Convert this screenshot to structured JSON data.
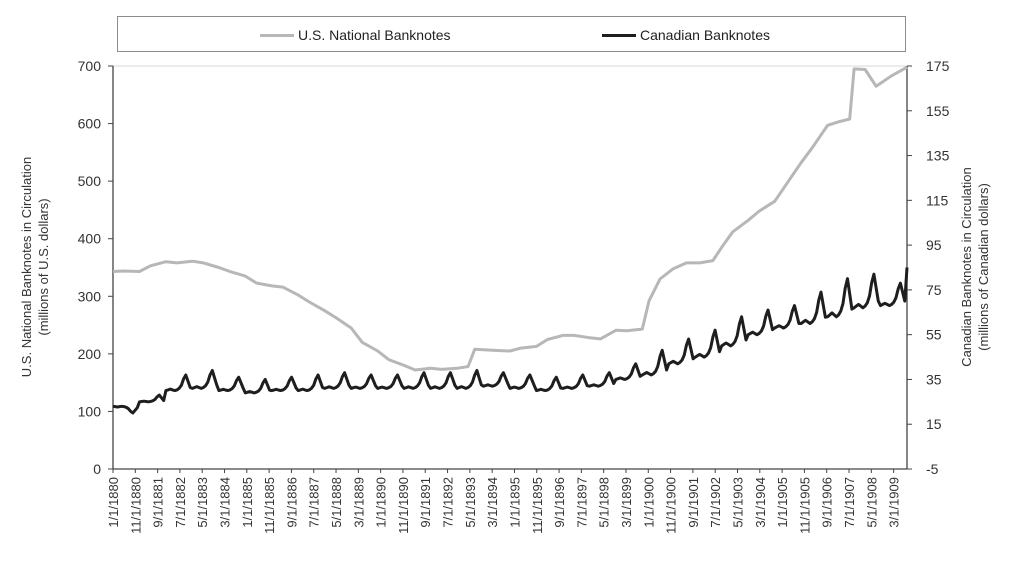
{
  "legend": {
    "items": [
      {
        "label": "U.S. National Banknotes",
        "color": "#b7b7b7"
      },
      {
        "label": "Canadian Banknotes",
        "color": "#1e1e1e"
      }
    ]
  },
  "chart_data": {
    "type": "line",
    "left_axis": {
      "label_line1": "U.S. National Banknotes in Circulation",
      "label_line2": "(millions of U.S. dollars)",
      "ylim": [
        0,
        700
      ],
      "ticks": [
        "0",
        "100",
        "200",
        "300",
        "400",
        "500",
        "600",
        "700"
      ]
    },
    "right_axis": {
      "label_line1": "Canadian Banknotes in Circulation",
      "label_line2": "(millions of Canadian dollars)",
      "ylim": [
        -5,
        175
      ],
      "ticks": [
        "-5",
        "15",
        "35",
        "55",
        "75",
        "95",
        "115",
        "135",
        "155",
        "175"
      ]
    },
    "x_range": [
      "1880-01",
      "1910-01"
    ],
    "x_ticks": [
      "1/1/1880",
      "11/1/1880",
      "9/1/1881",
      "7/1/1882",
      "5/1/1883",
      "3/1/1884",
      "1/1/1885",
      "11/1/1885",
      "9/1/1886",
      "7/1/1887",
      "5/1/1888",
      "3/1/1889",
      "1/1/1890",
      "11/1/1890",
      "9/1/1891",
      "7/1/1892",
      "5/1/1893",
      "3/1/1894",
      "1/1/1895",
      "11/1/1895",
      "9/1/1896",
      "7/1/1897",
      "5/1/1898",
      "3/1/1899",
      "1/1/1900",
      "11/1/1900",
      "9/1/1901",
      "7/1/1902",
      "5/1/1903",
      "3/1/1904",
      "1/1/1905",
      "11/1/1905",
      "9/1/1906",
      "7/1/1907",
      "5/1/1908",
      "3/1/1909"
    ],
    "series": [
      {
        "name": "U.S. National Banknotes",
        "axis": "left",
        "color": "#b7b7b7",
        "points": [
          [
            "1880-01",
            343
          ],
          [
            "1880-06",
            344
          ],
          [
            "1881-01",
            343
          ],
          [
            "1881-06",
            353
          ],
          [
            "1882-01",
            360
          ],
          [
            "1882-06",
            358
          ],
          [
            "1883-01",
            361
          ],
          [
            "1883-06",
            358
          ],
          [
            "1884-01",
            350
          ],
          [
            "1884-06",
            343
          ],
          [
            "1885-01",
            335
          ],
          [
            "1885-06",
            323
          ],
          [
            "1886-01",
            318
          ],
          [
            "1886-06",
            316
          ],
          [
            "1887-01",
            302
          ],
          [
            "1887-06",
            290
          ],
          [
            "1888-01",
            275
          ],
          [
            "1888-06",
            263
          ],
          [
            "1889-01",
            245
          ],
          [
            "1889-06",
            220
          ],
          [
            "1890-01",
            205
          ],
          [
            "1890-06",
            190
          ],
          [
            "1891-01",
            180
          ],
          [
            "1891-06",
            172
          ],
          [
            "1892-01",
            175
          ],
          [
            "1892-06",
            173
          ],
          [
            "1893-01",
            175
          ],
          [
            "1893-06",
            178
          ],
          [
            "1893-09",
            208
          ],
          [
            "1894-01",
            207
          ],
          [
            "1894-06",
            206
          ],
          [
            "1895-01",
            205
          ],
          [
            "1895-06",
            210
          ],
          [
            "1896-01",
            213
          ],
          [
            "1896-06",
            225
          ],
          [
            "1897-01",
            232
          ],
          [
            "1897-06",
            232
          ],
          [
            "1898-01",
            228
          ],
          [
            "1898-06",
            226
          ],
          [
            "1899-01",
            241
          ],
          [
            "1899-06",
            240
          ],
          [
            "1900-01",
            243
          ],
          [
            "1900-04",
            292
          ],
          [
            "1900-09",
            330
          ],
          [
            "1901-03",
            348
          ],
          [
            "1901-09",
            358
          ],
          [
            "1902-03",
            358
          ],
          [
            "1902-09",
            362
          ],
          [
            "1903-01",
            385
          ],
          [
            "1903-06",
            412
          ],
          [
            "1904-01",
            432
          ],
          [
            "1904-06",
            448
          ],
          [
            "1905-01",
            465
          ],
          [
            "1905-06",
            493
          ],
          [
            "1906-01",
            532
          ],
          [
            "1906-06",
            558
          ],
          [
            "1907-01",
            597
          ],
          [
            "1907-06",
            603
          ],
          [
            "1907-11",
            608
          ],
          [
            "1908-01",
            695
          ],
          [
            "1908-06",
            694
          ],
          [
            "1908-11",
            665
          ],
          [
            "1909-06",
            683
          ],
          [
            "1910-01",
            698
          ]
        ]
      },
      {
        "name": "Canadian Banknotes",
        "axis": "right",
        "color": "#1e1e1e",
        "annual_base": [
          23,
          25,
          30,
          31,
          30,
          29,
          30,
          30,
          31,
          31,
          31,
          31,
          31,
          31,
          32,
          31,
          30,
          31,
          32,
          35,
          37,
          42,
          45,
          50,
          55,
          58,
          60,
          63,
          67,
          68
        ],
        "annual_peak": [
          20,
          28,
          37,
          39,
          36,
          35,
          36,
          37,
          38,
          37,
          37,
          38,
          38,
          39,
          38,
          37,
          36,
          37,
          38,
          42,
          48,
          53,
          57,
          63,
          66,
          68,
          74,
          80,
          82,
          78
        ],
        "end_value": 85
      }
    ]
  }
}
